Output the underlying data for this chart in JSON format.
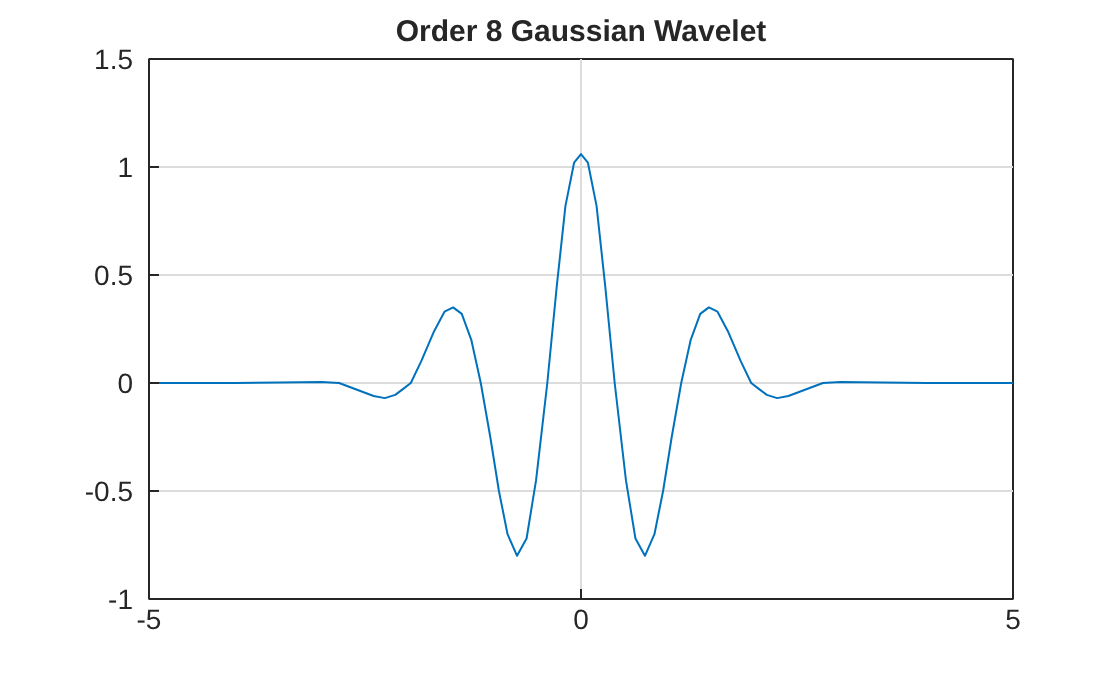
{
  "chart_data": {
    "type": "line",
    "title": "Order 8 Gaussian Wavelet",
    "x": [
      -5,
      -4,
      -3.5,
      -3,
      -2.8,
      -2.6,
      -2.4,
      -2.27,
      -2.15,
      -2.05,
      -1.97,
      -1.85,
      -1.7,
      -1.58,
      -1.48,
      -1.38,
      -1.27,
      -1.16,
      -1.05,
      -0.95,
      -0.85,
      -0.74,
      -0.63,
      -0.52,
      -0.39,
      -0.28,
      -0.18,
      -0.08,
      0,
      0.08,
      0.18,
      0.28,
      0.39,
      0.52,
      0.63,
      0.74,
      0.85,
      0.95,
      1.05,
      1.16,
      1.27,
      1.38,
      1.48,
      1.58,
      1.7,
      1.85,
      1.97,
      2.05,
      2.15,
      2.27,
      2.4,
      2.6,
      2.8,
      3,
      3.5,
      4,
      5
    ],
    "series": [
      {
        "color": "#0072bd",
        "values": [
          0,
          0,
          0.002,
          0.005,
          0,
          -0.03,
          -0.06,
          -0.07,
          -0.055,
          -0.025,
          0,
          0.1,
          0.24,
          0.33,
          0.35,
          0.32,
          0.2,
          0,
          -0.25,
          -0.5,
          -0.7,
          -0.8,
          -0.72,
          -0.45,
          0,
          0.45,
          0.82,
          1.02,
          1.06,
          1.02,
          0.82,
          0.45,
          0,
          -0.45,
          -0.72,
          -0.8,
          -0.7,
          -0.5,
          -0.25,
          0,
          0.2,
          0.32,
          0.35,
          0.33,
          0.24,
          0.1,
          0,
          -0.025,
          -0.055,
          -0.07,
          -0.06,
          -0.03,
          0,
          0.005,
          0.002,
          0,
          0
        ]
      }
    ],
    "xlim": [
      -5,
      5
    ],
    "ylim": [
      -1,
      1.5
    ],
    "xticks": [
      -5,
      0,
      5
    ],
    "yticks": [
      -1,
      -0.5,
      0,
      0.5,
      1,
      1.5
    ],
    "grid": true,
    "line_style": "solid"
  }
}
